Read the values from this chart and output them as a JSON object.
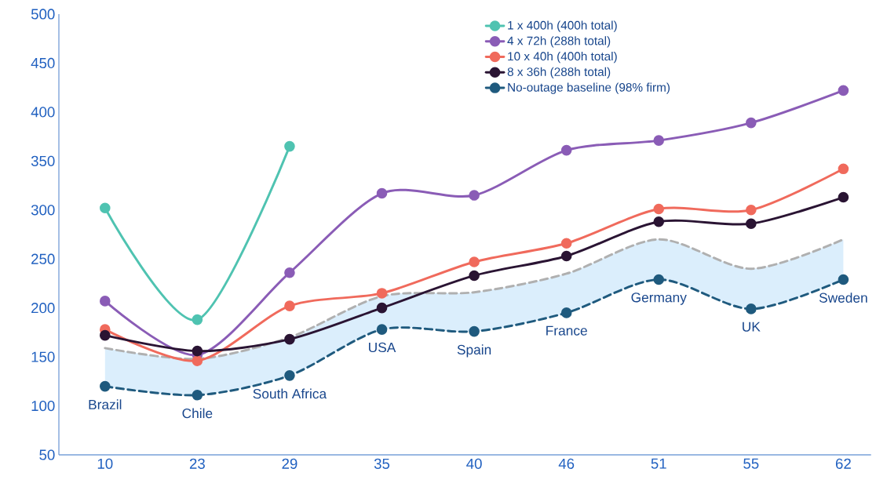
{
  "chart_data": {
    "type": "line",
    "categories": [
      "10",
      "23",
      "29",
      "35",
      "40",
      "46",
      "51",
      "55",
      "62"
    ],
    "series": [
      {
        "name": "1 x 400h (400h total)",
        "color": "#4fc3b1",
        "values": [
          302,
          188,
          365,
          null,
          null,
          null,
          null,
          null,
          null
        ]
      },
      {
        "name": "4 x 72h (288h total)",
        "color": "#8a5cb6",
        "values": [
          207,
          152,
          236,
          317,
          315,
          361,
          371,
          389,
          422
        ]
      },
      {
        "name": "10 x 40h (400h total)",
        "color": "#f06a5c",
        "values": [
          178,
          146,
          202,
          215,
          247,
          266,
          301,
          300,
          342
        ]
      },
      {
        "name": "8 x 36h (288h total)",
        "color": "#2a1433",
        "values": [
          172,
          156,
          168,
          200,
          233,
          253,
          288,
          286,
          313
        ]
      },
      {
        "name": "No-outage baseline (98% firm)",
        "color": "#1f5a7e",
        "values": [
          120,
          111,
          131,
          178,
          176,
          195,
          229,
          199,
          229
        ],
        "line_style": "dashed"
      },
      {
        "color": "#b0b0b0",
        "values": [
          159,
          148,
          170,
          212,
          216,
          235,
          270,
          240,
          270
        ],
        "lower": [
          120,
          111,
          131,
          178,
          176,
          195,
          229,
          199,
          229
        ],
        "upper": [
          159,
          148,
          170,
          212,
          216,
          235,
          270,
          240,
          270
        ],
        "line_style": "dashed",
        "marker": "none"
      }
    ],
    "ylim": [
      50,
      500
    ],
    "yticks": [
      50,
      100,
      150,
      200,
      250,
      300,
      350,
      400,
      450,
      500
    ],
    "marker": "circle",
    "legend": "top",
    "grid": false,
    "annotations": [
      {
        "text": "Brazil",
        "x": "10",
        "y": 120
      },
      {
        "text": "Chile",
        "x": "23",
        "y": 111
      },
      {
        "text": "South Africa",
        "x": "29",
        "y": 131
      },
      {
        "text": "USA",
        "x": "35",
        "y": 178
      },
      {
        "text": "Spain",
        "x": "40",
        "y": 176
      },
      {
        "text": "France",
        "x": "46",
        "y": 195
      },
      {
        "text": "Germany",
        "x": "51",
        "y": 229
      },
      {
        "text": "UK",
        "x": "55",
        "y": 199
      },
      {
        "text": "Sweden",
        "x": "62",
        "y": 229
      }
    ]
  }
}
